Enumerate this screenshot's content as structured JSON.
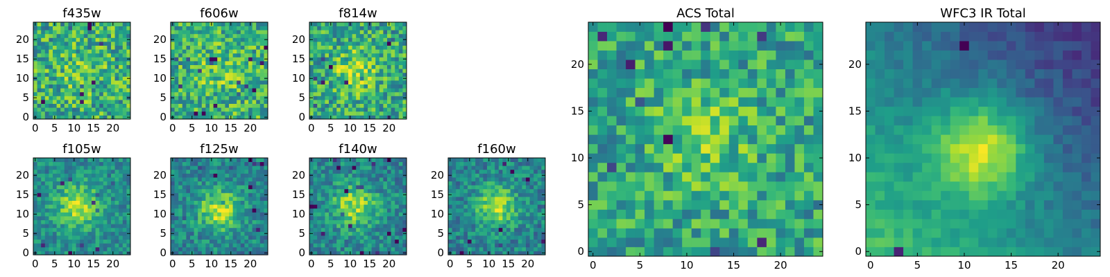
{
  "chart_data": [
    {
      "type": "heatmap",
      "title": "f435w",
      "grid_size": 25,
      "xlim": [
        -0.5,
        24.5
      ],
      "ylim": [
        -0.5,
        24.5
      ],
      "xticks": [
        0,
        5,
        10,
        15,
        20
      ],
      "yticks": [
        0,
        5,
        10,
        15,
        20
      ],
      "center": [
        12,
        12
      ],
      "peak": 0.12,
      "sigma": 4,
      "noise": 0.9,
      "floor": 0.62,
      "seed": 11,
      "colormap": "viridis",
      "grid": false
    },
    {
      "type": "heatmap",
      "title": "f606w",
      "grid_size": 25,
      "xlim": [
        -0.5,
        24.5
      ],
      "ylim": [
        -0.5,
        24.5
      ],
      "xticks": [
        0,
        5,
        10,
        15,
        20
      ],
      "yticks": [
        0,
        5,
        10,
        15,
        20
      ],
      "center": [
        12,
        12
      ],
      "peak": 0.12,
      "sigma": 4,
      "noise": 0.85,
      "floor": 0.64,
      "seed": 23,
      "colormap": "viridis",
      "grid": false
    },
    {
      "type": "heatmap",
      "title": "f814w",
      "grid_size": 25,
      "xlim": [
        -0.5,
        24.5
      ],
      "ylim": [
        -0.5,
        24.5
      ],
      "xticks": [
        0,
        5,
        10,
        15,
        20
      ],
      "yticks": [
        0,
        5,
        10,
        15,
        20
      ],
      "center": [
        11,
        12
      ],
      "peak": 0.3,
      "sigma": 3.5,
      "noise": 0.85,
      "floor": 0.6,
      "seed": 37,
      "colormap": "viridis",
      "grid": false
    },
    {
      "type": "heatmap",
      "title": "f105w",
      "grid_size": 25,
      "xlim": [
        -0.5,
        24.5
      ],
      "ylim": [
        -0.5,
        24.5
      ],
      "xticks": [
        0,
        5,
        10,
        15,
        20
      ],
      "yticks": [
        0,
        5,
        10,
        15,
        20
      ],
      "center": [
        11,
        12
      ],
      "peak": 0.4,
      "sigma": 4,
      "noise": 0.55,
      "floor": 0.48,
      "seed": 41,
      "colormap": "viridis",
      "grid": false
    },
    {
      "type": "heatmap",
      "title": "f125w",
      "grid_size": 25,
      "xlim": [
        -0.5,
        24.5
      ],
      "ylim": [
        -0.5,
        24.5
      ],
      "xticks": [
        0,
        5,
        10,
        15,
        20
      ],
      "yticks": [
        0,
        5,
        10,
        15,
        20
      ],
      "center": [
        12,
        11
      ],
      "peak": 0.45,
      "sigma": 3.8,
      "noise": 0.6,
      "floor": 0.45,
      "seed": 53,
      "colormap": "viridis",
      "grid": false
    },
    {
      "type": "heatmap",
      "title": "f140w",
      "grid_size": 25,
      "xlim": [
        -0.5,
        24.5
      ],
      "ylim": [
        -0.5,
        24.5
      ],
      "xticks": [
        0,
        5,
        10,
        15,
        20
      ],
      "yticks": [
        0,
        5,
        10,
        15,
        20
      ],
      "center": [
        11,
        12
      ],
      "peak": 0.4,
      "sigma": 4,
      "noise": 0.6,
      "floor": 0.46,
      "seed": 67,
      "colormap": "viridis",
      "grid": false
    },
    {
      "type": "heatmap",
      "title": "f160w",
      "grid_size": 25,
      "xlim": [
        -0.5,
        24.5
      ],
      "ylim": [
        -0.5,
        24.5
      ],
      "xticks": [
        0,
        5,
        10,
        15,
        20
      ],
      "yticks": [
        0,
        5,
        10,
        15,
        20
      ],
      "center": [
        12,
        12
      ],
      "peak": 0.45,
      "sigma": 3.5,
      "noise": 0.6,
      "floor": 0.45,
      "seed": 79,
      "colormap": "viridis",
      "grid": false
    },
    {
      "type": "heatmap",
      "title": "ACS Total",
      "grid_size": 25,
      "xlim": [
        -0.5,
        24.5
      ],
      "ylim": [
        -0.5,
        24.5
      ],
      "xticks": [
        0,
        5,
        10,
        15,
        20
      ],
      "yticks": [
        0,
        5,
        10,
        15,
        20
      ],
      "center": [
        12,
        12
      ],
      "peak": 0.18,
      "sigma": 4,
      "noise": 0.75,
      "floor": 0.58,
      "seed": 97,
      "colormap": "viridis",
      "grid": false
    },
    {
      "type": "heatmap",
      "title": "WFC3 IR Total",
      "grid_size": 25,
      "xlim": [
        -0.5,
        24.5
      ],
      "ylim": [
        -0.5,
        24.5
      ],
      "xticks": [
        0,
        5,
        10,
        15,
        20
      ],
      "yticks": [
        0,
        5,
        10,
        15,
        20
      ],
      "center": [
        12,
        11
      ],
      "peak": 0.5,
      "sigma": 3.5,
      "noise": 0.25,
      "floor": 0.42,
      "gradient": -0.012,
      "seed": 103,
      "colormap": "viridis",
      "grid": false
    }
  ]
}
